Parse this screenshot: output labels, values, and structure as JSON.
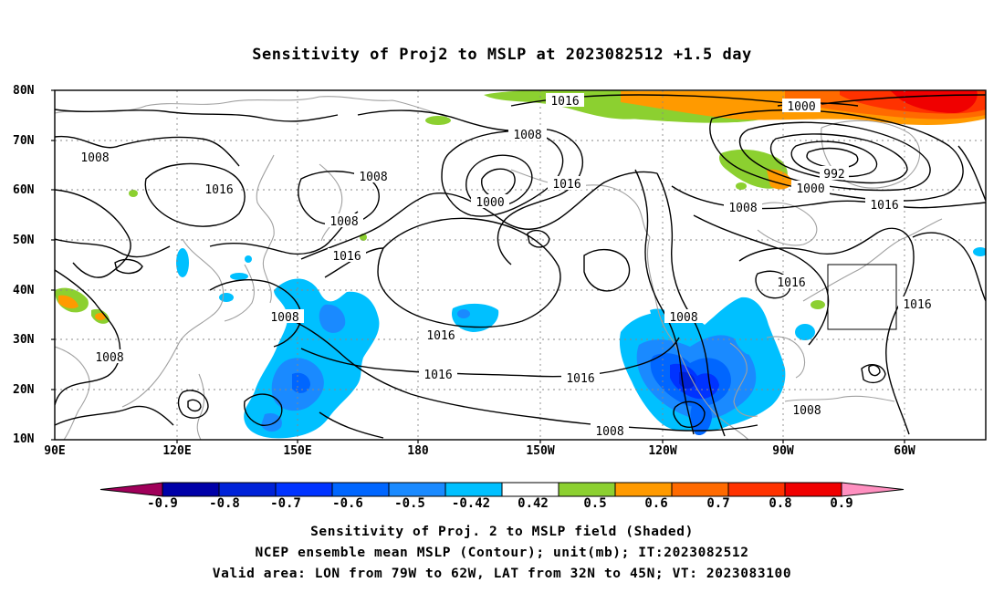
{
  "title": "Sensitivity of Proj2 to MSLP at 2023082512 +1.5 day",
  "lat_labels": [
    "80N",
    "70N",
    "60N",
    "50N",
    "40N",
    "30N",
    "20N",
    "10N"
  ],
  "lon_labels": [
    "90E",
    "120E",
    "150E",
    "180",
    "150W",
    "120W",
    "90W",
    "60W"
  ],
  "isobar_labels": [
    "1016",
    "1000",
    "1008",
    "1008",
    "1016",
    "1008",
    "1016",
    "992",
    "1000",
    "1008",
    "1016",
    "1000",
    "1008",
    "1016",
    "1016",
    "1008",
    "1016",
    "1016",
    "1008",
    "1016",
    "1008",
    "1008",
    "1008"
  ],
  "colorbar": {
    "colors": [
      "#a0005a",
      "#0000a8",
      "#0022d8",
      "#0033ff",
      "#0066ff",
      "#1a8aff",
      "#00c0ff",
      "#ffffff",
      "#8cd030",
      "#ff9a00",
      "#ff6a00",
      "#ff3200",
      "#f00000",
      "#ff90c0"
    ],
    "labels": [
      "-0.9",
      "-0.8",
      "-0.7",
      "-0.6",
      "-0.5",
      "-0.42",
      "0.42",
      "0.5",
      "0.6",
      "0.7",
      "0.8",
      "0.9"
    ]
  },
  "captions": [
    "Sensitivity of Proj. 2 to MSLP field (Shaded)",
    "NCEP ensemble mean MSLP (Contour); unit(mb); IT:2023082512",
    "Valid area: LON from 79W to 62W, LAT from 32N to 45N; VT: 2023083100"
  ]
}
